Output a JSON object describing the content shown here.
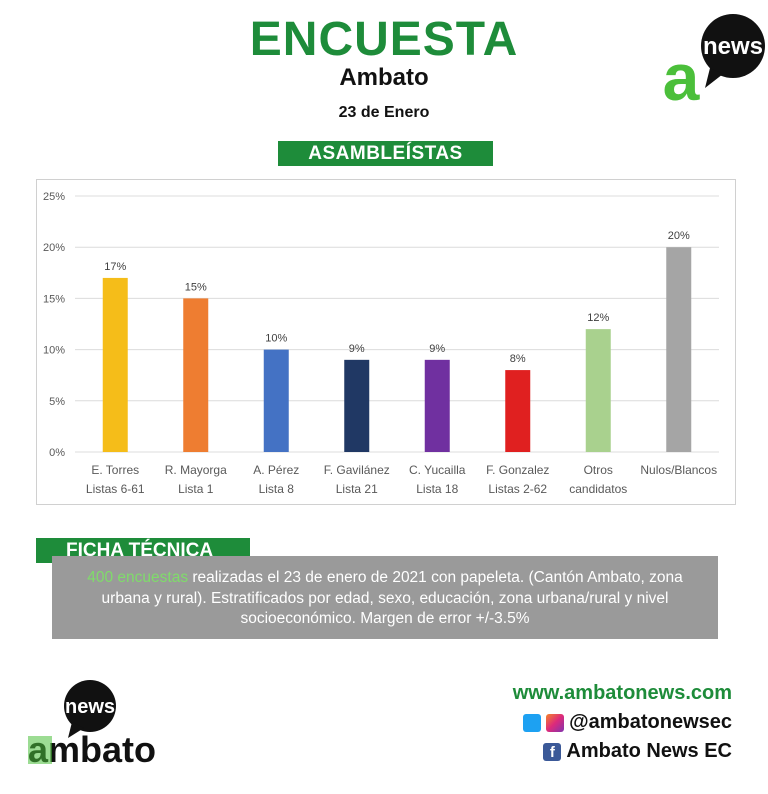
{
  "header": {
    "title": "ENCUESTA",
    "subtitle": "Ambato",
    "date": "23 de Enero",
    "section": "ASAMBLEÍSTAS"
  },
  "logo": {
    "top_word": "news",
    "bottom_top": "news",
    "bottom_word": "ambato",
    "letter": "a"
  },
  "colors": {
    "brand_green": "#1e8c3a",
    "dark": "#111111",
    "gray_box": "#9a9a9a"
  },
  "chart_data": {
    "type": "bar",
    "categories": [
      [
        "E. Torres",
        "Listas 6-61"
      ],
      [
        "R. Mayorga",
        "Lista 1"
      ],
      [
        "A. Pérez",
        "Lista 8"
      ],
      [
        "F. Gavilánez",
        "Lista 21"
      ],
      [
        "C. Yucailla",
        "Lista 18"
      ],
      [
        "F. Gonzalez",
        "Listas 2-62"
      ],
      [
        "Otros",
        "candidatos"
      ],
      [
        "Nulos/Blancos"
      ]
    ],
    "values": [
      17,
      15,
      10,
      9,
      9,
      8,
      12,
      20
    ],
    "data_labels": [
      "17%",
      "15%",
      "10%",
      "9%",
      "9%",
      "8%",
      "12%",
      "20%"
    ],
    "bar_colors": [
      "#f5bd19",
      "#ee7d31",
      "#4472c4",
      "#203864",
      "#7030a0",
      "#e02020",
      "#a9d18e",
      "#a5a5a5"
    ],
    "yticks": [
      "0%",
      "5%",
      "10%",
      "15%",
      "20%",
      "25%"
    ],
    "ylim": [
      0,
      25
    ],
    "grid": true,
    "title": "",
    "xlabel": "",
    "ylabel": ""
  },
  "ficha": {
    "title": "FICHA TÉCNICA",
    "highlight": "400 encuestas",
    "text": " realizadas el 23 de enero de 2021 con papeleta. (Cantón Ambato, zona urbana y rural). Estratificados por edad, sexo, educación, zona urbana/rural y nivel socioeconómico. Margen de error +/-3.5%"
  },
  "contact": {
    "website": "www.ambatonews.com",
    "social_handle": "@ambatonewsec",
    "facebook": "Ambato News EC",
    "icons": [
      "twitter-icon",
      "instagram-icon",
      "facebook-icon"
    ]
  }
}
